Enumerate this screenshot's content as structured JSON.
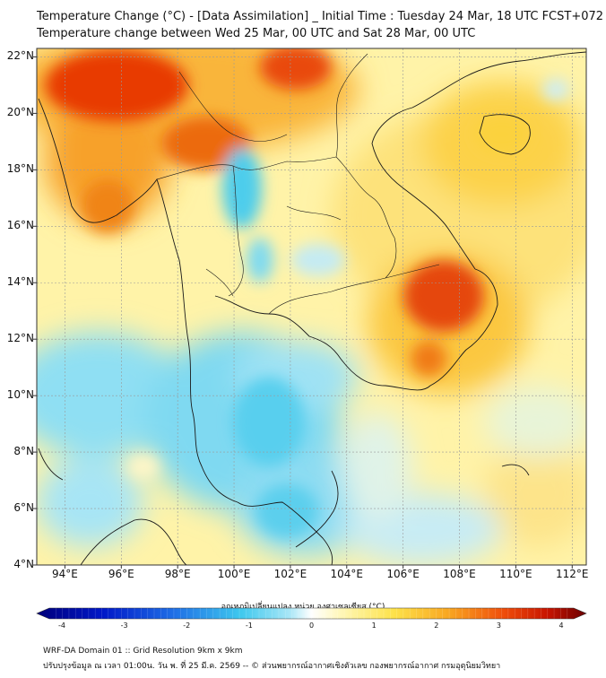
{
  "title_line1": "Temperature Change (°C) - [Data Assimilation] _ Initial Time : Tuesday 24 Mar, 18 UTC FCST+072",
  "title_line2": "Temperature change between Wed 25 Mar, 00 UTC and Sat 28 Mar, 00 UTC",
  "lat_labels": [
    "22°N",
    "20°N",
    "18°N",
    "16°N",
    "14°N",
    "12°N",
    "10°N",
    "8°N",
    "6°N",
    "4°N"
  ],
  "lat_values": [
    22,
    20,
    18,
    16,
    14,
    12,
    10,
    8,
    6,
    4
  ],
  "lon_labels": [
    "94°E",
    "96°E",
    "98°E",
    "100°E",
    "102°E",
    "104°E",
    "106°E",
    "108°E",
    "110°E",
    "112°E"
  ],
  "lon_values": [
    94,
    96,
    98,
    100,
    102,
    104,
    106,
    108,
    110,
    112
  ],
  "map_extent": {
    "lon": [
      93,
      112.5
    ],
    "lat": [
      4,
      22.3
    ]
  },
  "colorbar": {
    "title": "อุณหภูมิเปลี่ยนแปลง หน่วย องศาเซลเซียส (°C)",
    "ticks": [
      "-4",
      "-3",
      "-2",
      "-1",
      "0",
      "1",
      "2",
      "3",
      "4"
    ],
    "range": [
      -4,
      4
    ]
  },
  "footer_line1": "WRF-DA Domain 01 :: Grid Resolution 9km x 9km",
  "footer_line2": "ปรับปรุงข้อมูล ณ เวลา 01:00น. วัน พ. ที่ 25 มี.ค. 2569 -- © ส่วนพยากรณ์อากาศเชิงตัวเลข กองพยากรณ์อากาศ กรมอุตุนิยมวิทยา",
  "colors": {
    "warm_dark": "#d81e00",
    "warm_mid": "#f57a10",
    "warm_light": "#fbc21c",
    "neutral_yellow": "#fff08c",
    "cool_light": "#bdeaf7",
    "cool_mid": "#5fd2ef",
    "cool_dark": "#000090"
  }
}
